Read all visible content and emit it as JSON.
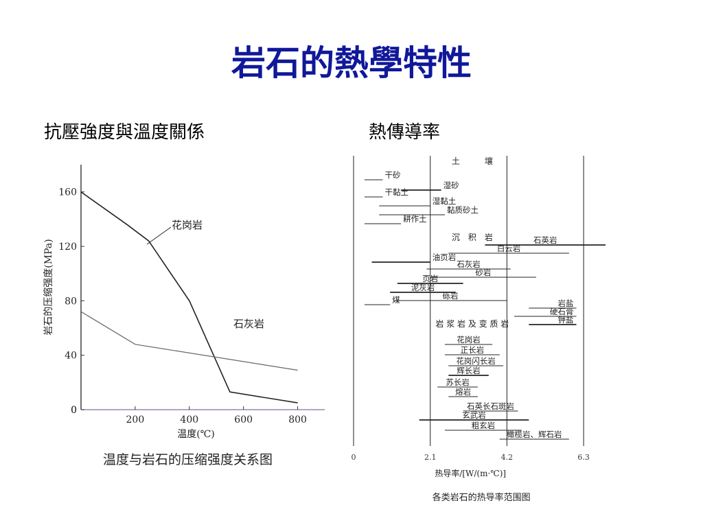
{
  "slide": {
    "title": "岩石的熱學特性",
    "left_heading": "抗壓強度與溫度關係",
    "right_heading": "熱傳導率"
  },
  "chart_data": [
    {
      "type": "line",
      "title": "",
      "caption": "温度与岩石的压缩强度关系图",
      "xlabel": "温度(℃)",
      "ylabel": "岩石的压缩强度(MPa)",
      "xlim": [
        0,
        900
      ],
      "ylim": [
        0,
        180
      ],
      "xticks": [
        200,
        400,
        600,
        800
      ],
      "yticks": [
        0,
        40,
        80,
        120,
        160
      ],
      "grid": false,
      "series": [
        {
          "name": "花岗岩",
          "color": "#222222",
          "points": [
            [
              0,
              160
            ],
            [
              170,
              136
            ],
            [
              250,
              124
            ],
            [
              400,
              80
            ],
            [
              550,
              13
            ],
            [
              800,
              5
            ]
          ]
        },
        {
          "name": "石灰岩",
          "color": "#666666",
          "points": [
            [
              0,
              72
            ],
            [
              200,
              48
            ],
            [
              800,
              29
            ]
          ]
        }
      ]
    },
    {
      "type": "range",
      "caption": "各类岩石的热导率范围图",
      "xlabel": "热导率/[W/(m·℃)]",
      "xlim": [
        0,
        7.2
      ],
      "xticks": [
        0,
        2.1,
        4.2,
        6.3
      ],
      "section_labels": [
        {
          "text": "土　　　壤",
          "group": "soil"
        },
        {
          "text": "沉　积　岩",
          "group": "sedimentary"
        },
        {
          "text": "岩 浆 岩 及 变 质 岩",
          "group": "igneous"
        }
      ],
      "ranges": [
        {
          "name": "干砂",
          "min": 0.3,
          "max": 0.8
        },
        {
          "name": "湿砂",
          "min": 1.3,
          "max": 2.4
        },
        {
          "name": "干黏土",
          "min": 0.3,
          "max": 0.8
        },
        {
          "name": "湿黏土",
          "min": 0.7,
          "max": 2.1
        },
        {
          "name": "黏质砂土",
          "min": 0.7,
          "max": 2.5
        },
        {
          "name": "耕作土",
          "min": 0.3,
          "max": 1.3
        },
        {
          "name": "石英岩",
          "min": 3.6,
          "max": 6.9
        },
        {
          "name": "白云岩",
          "min": 2.6,
          "max": 5.9
        },
        {
          "name": "油页岩",
          "min": 0.5,
          "max": 2.1
        },
        {
          "name": "石灰岩",
          "min": 2.0,
          "max": 4.3
        },
        {
          "name": "砂岩",
          "min": 2.1,
          "max": 5.0
        },
        {
          "name": "页岩",
          "min": 1.2,
          "max": 3.0
        },
        {
          "name": "泥灰岩",
          "min": 1.0,
          "max": 2.8
        },
        {
          "name": "砾岩",
          "min": 1.1,
          "max": 4.2
        },
        {
          "name": "煤",
          "min": 0.3,
          "max": 1.0
        },
        {
          "name": "岩盐",
          "min": 4.8,
          "max": 6.1
        },
        {
          "name": "硬石膏",
          "min": 4.4,
          "max": 6.1
        },
        {
          "name": "钾盐",
          "min": 4.8,
          "max": 6.1
        },
        {
          "name": "花岗岩",
          "min": 2.5,
          "max": 3.8
        },
        {
          "name": "正长岩",
          "min": 2.5,
          "max": 4.0
        },
        {
          "name": "花岗闪长岩",
          "min": 2.6,
          "max": 4.1
        },
        {
          "name": "辉长岩",
          "min": 2.6,
          "max": 3.7
        },
        {
          "name": "苏长岩",
          "min": 2.3,
          "max": 3.4
        },
        {
          "name": "熔岩",
          "min": 2.6,
          "max": 3.4
        },
        {
          "name": "石英长石斑岩",
          "min": 3.0,
          "max": 4.5
        },
        {
          "name": "玄武岩",
          "min": 1.8,
          "max": 4.8
        },
        {
          "name": "粗玄岩",
          "min": 2.5,
          "max": 4.6
        },
        {
          "name": "橄榄岩、辉石岩",
          "min": 4.0,
          "max": 5.9
        }
      ]
    }
  ]
}
